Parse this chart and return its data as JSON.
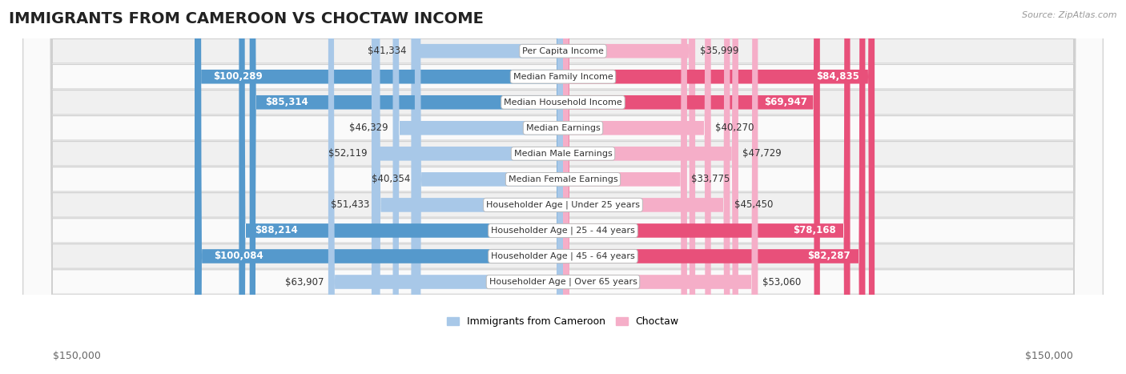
{
  "title": "IMMIGRANTS FROM CAMEROON VS CHOCTAW INCOME",
  "source": "Source: ZipAtlas.com",
  "categories": [
    "Per Capita Income",
    "Median Family Income",
    "Median Household Income",
    "Median Earnings",
    "Median Male Earnings",
    "Median Female Earnings",
    "Householder Age | Under 25 years",
    "Householder Age | 25 - 44 years",
    "Householder Age | 45 - 64 years",
    "Householder Age | Over 65 years"
  ],
  "cameroon_values": [
    41334,
    100289,
    85314,
    46329,
    52119,
    40354,
    51433,
    88214,
    100084,
    63907
  ],
  "choctaw_values": [
    35999,
    84835,
    69947,
    40270,
    47729,
    33775,
    45450,
    78168,
    82287,
    53060
  ],
  "cameroon_labels": [
    "$41,334",
    "$100,289",
    "$85,314",
    "$46,329",
    "$52,119",
    "$40,354",
    "$51,433",
    "$88,214",
    "$100,084",
    "$63,907"
  ],
  "choctaw_labels": [
    "$35,999",
    "$84,835",
    "$69,947",
    "$40,270",
    "$47,729",
    "$33,775",
    "$45,450",
    "$78,168",
    "$82,287",
    "$53,060"
  ],
  "cameroon_color_light": "#a8c8e8",
  "cameroon_color_dark": "#5599cc",
  "choctaw_color_light": "#f5aec8",
  "choctaw_color_dark": "#e8507a",
  "cam_dark_threshold": 70000,
  "cho_dark_threshold": 65000,
  "max_value": 150000,
  "xlabel_left": "$150,000",
  "xlabel_right": "$150,000",
  "legend_cameroon": "Immigrants from Cameroon",
  "legend_choctaw": "Choctaw",
  "background_color": "#ffffff",
  "row_bg_even": "#f0f0f0",
  "row_bg_odd": "#fafafa",
  "title_fontsize": 14,
  "label_fontsize": 8.5,
  "category_fontsize": 8.0,
  "source_fontsize": 8
}
